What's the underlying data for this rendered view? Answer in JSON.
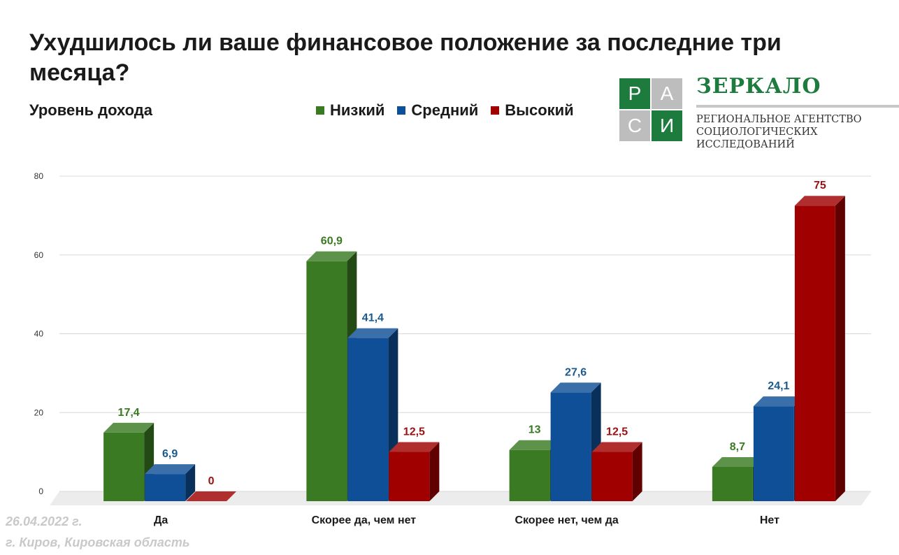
{
  "title": "Ухудшилось ли ваше финансовое положение за последние три месяца?",
  "subtitle": "Уровень дохода",
  "logo": {
    "letters": [
      "Р",
      "А",
      "С",
      "И"
    ],
    "brand": "ЗЕРКАЛО",
    "agency_lines": [
      "РЕГИОНАЛЬНОЕ АГЕНТСТВО",
      "СОЦИОЛОГИЧЕСКИХ",
      "ИССЛЕДОВАНИЙ"
    ],
    "colors": {
      "green": "#1e7b3e",
      "gray": "#bdbdbd"
    }
  },
  "footer": {
    "date": "26.04.2022 г.",
    "place": "г. Киров, Кировская область"
  },
  "chart_data": {
    "type": "bar",
    "categories": [
      "Да",
      "Скорее да, чем нет",
      "Скорее нет, чем да",
      "Нет"
    ],
    "series": [
      {
        "name": "Низкий",
        "values": [
          17.4,
          60.9,
          13,
          8.7
        ],
        "labels": [
          "17,4",
          "60,9",
          "13",
          "8,7"
        ],
        "color": "#3a7a22",
        "label_color": "#3a7a22"
      },
      {
        "name": "Средний",
        "values": [
          6.9,
          41.4,
          27.6,
          24.1
        ],
        "labels": [
          "6,9",
          "41,4",
          "27,6",
          "24,1"
        ],
        "color": "#0f4f97",
        "label_color": "#1a5a8f"
      },
      {
        "name": "Высокий",
        "values": [
          0,
          12.5,
          12.5,
          75
        ],
        "labels": [
          "0",
          "12,5",
          "12,5",
          "75"
        ],
        "color": "#a00000",
        "label_color": "#9b1010"
      }
    ],
    "yticks": [
      "0",
      "20",
      "40",
      "60",
      "80"
    ],
    "ylim": [
      0,
      80
    ],
    "grid": true,
    "style": "3d",
    "legend": "top"
  }
}
